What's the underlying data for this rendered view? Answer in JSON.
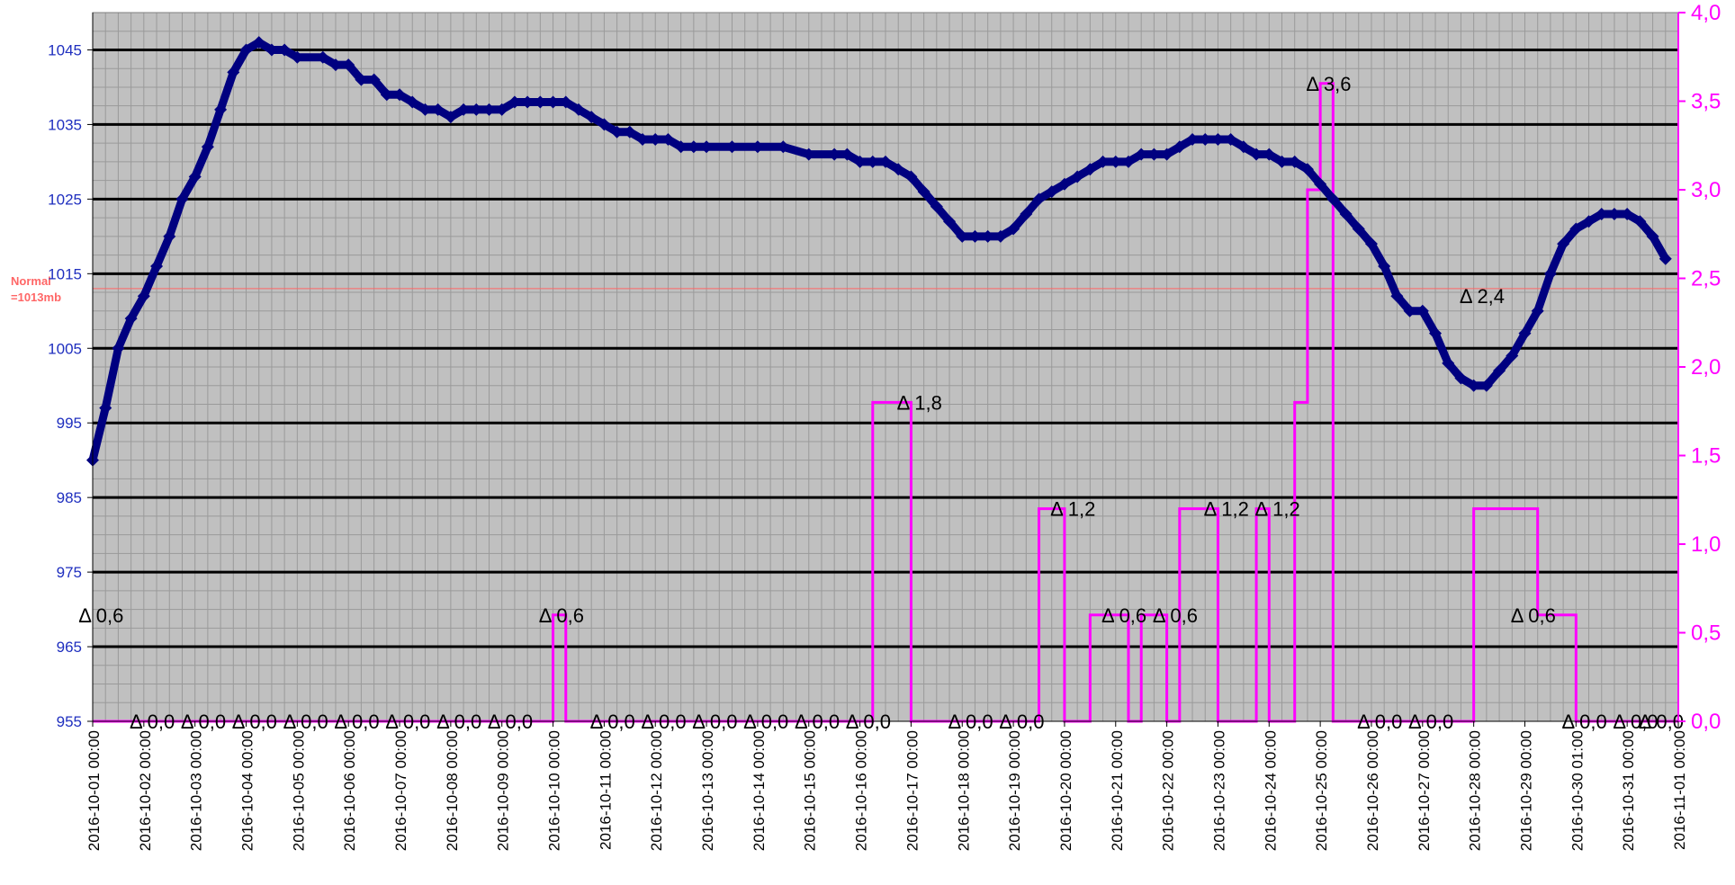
{
  "chart_data": {
    "type": "line",
    "x_axis": {
      "type": "date",
      "min": "2016-10-01 00:00",
      "max": "2016-11-01 00:00",
      "tick_labels": [
        "2016-10-01 00:00",
        "2016-10-02 00:00",
        "2016-10-03 00:00",
        "2016-10-04 00:00",
        "2016-10-05 00:00",
        "2016-10-06 00:00",
        "2016-10-07 00:00",
        "2016-10-08 00:00",
        "2016-10-09 00:00",
        "2016-10-10 00:00",
        "2016-10-11 00:00",
        "2016-10-12 00:00",
        "2016-10-13 00:00",
        "2016-10-14 00:00",
        "2016-10-15 00:00",
        "2016-10-16 00:00",
        "2016-10-17 00:00",
        "2016-10-18 00:00",
        "2016-10-19 00:00",
        "2016-10-20 00:00",
        "2016-10-21 00:00",
        "2016-10-22 00:00",
        "2016-10-23 00:00",
        "2016-10-24 00:00",
        "2016-10-25 00:00",
        "2016-10-26 00:00",
        "2016-10-27 00:00",
        "2016-10-28 00:00",
        "2016-10-29 00:00",
        "2016-10-30 01:00",
        "2016-10-31 00:00",
        "2016-11-01 00:00"
      ],
      "label_rotation": "vertical"
    },
    "y_axis_left": {
      "min": 955,
      "max": 1050,
      "tick_labels": [
        "955",
        "965",
        "975",
        "985",
        "995",
        "1005",
        "1015",
        "1025",
        "1035",
        "1045"
      ],
      "color": "#1f2fbf"
    },
    "y_axis_right": {
      "min": 0,
      "max": 4,
      "tick_labels": [
        "0,0",
        "0,5",
        "1,0",
        "1,5",
        "2,0",
        "2,5",
        "3,0",
        "3,5",
        "4,0"
      ],
      "color": "#ff00ff"
    },
    "reference_line": {
      "value": 1013,
      "label_line1": "Normal",
      "label_line2": "=1013mb",
      "color": "#ff6666"
    },
    "grid": true,
    "plot_background": "#c0c0c0",
    "series": [
      {
        "axis": "left",
        "color": "#000080",
        "marker": "diamond",
        "points": [
          [
            "2016-10-01 00:00",
            990
          ],
          [
            "2016-10-01 06:00",
            997
          ],
          [
            "2016-10-01 12:00",
            1005
          ],
          [
            "2016-10-01 18:00",
            1009
          ],
          [
            "2016-10-02 00:00",
            1012
          ],
          [
            "2016-10-02 06:00",
            1016
          ],
          [
            "2016-10-02 12:00",
            1020
          ],
          [
            "2016-10-02 18:00",
            1025
          ],
          [
            "2016-10-03 00:00",
            1028
          ],
          [
            "2016-10-03 06:00",
            1032
          ],
          [
            "2016-10-03 12:00",
            1037
          ],
          [
            "2016-10-03 18:00",
            1042
          ],
          [
            "2016-10-04 00:00",
            1045
          ],
          [
            "2016-10-04 06:00",
            1046
          ],
          [
            "2016-10-04 12:00",
            1045
          ],
          [
            "2016-10-04 18:00",
            1045
          ],
          [
            "2016-10-05 00:00",
            1044
          ],
          [
            "2016-10-05 12:00",
            1044
          ],
          [
            "2016-10-05 18:00",
            1043
          ],
          [
            "2016-10-06 00:00",
            1043
          ],
          [
            "2016-10-06 06:00",
            1041
          ],
          [
            "2016-10-06 12:00",
            1041
          ],
          [
            "2016-10-06 18:00",
            1039
          ],
          [
            "2016-10-07 00:00",
            1039
          ],
          [
            "2016-10-07 06:00",
            1038
          ],
          [
            "2016-10-07 12:00",
            1037
          ],
          [
            "2016-10-07 18:00",
            1037
          ],
          [
            "2016-10-08 00:00",
            1036
          ],
          [
            "2016-10-08 06:00",
            1037
          ],
          [
            "2016-10-08 12:00",
            1037
          ],
          [
            "2016-10-08 18:00",
            1037
          ],
          [
            "2016-10-09 00:00",
            1037
          ],
          [
            "2016-10-09 06:00",
            1038
          ],
          [
            "2016-10-09 12:00",
            1038
          ],
          [
            "2016-10-09 18:00",
            1038
          ],
          [
            "2016-10-10 00:00",
            1038
          ],
          [
            "2016-10-10 06:00",
            1038
          ],
          [
            "2016-10-10 12:00",
            1037
          ],
          [
            "2016-10-10 18:00",
            1036
          ],
          [
            "2016-10-11 00:00",
            1035
          ],
          [
            "2016-10-11 06:00",
            1034
          ],
          [
            "2016-10-11 12:00",
            1034
          ],
          [
            "2016-10-11 18:00",
            1033
          ],
          [
            "2016-10-12 00:00",
            1033
          ],
          [
            "2016-10-12 06:00",
            1033
          ],
          [
            "2016-10-12 12:00",
            1032
          ],
          [
            "2016-10-12 18:00",
            1032
          ],
          [
            "2016-10-13 00:00",
            1032
          ],
          [
            "2016-10-13 12:00",
            1032
          ],
          [
            "2016-10-14 00:00",
            1032
          ],
          [
            "2016-10-14 12:00",
            1032
          ],
          [
            "2016-10-15 00:00",
            1031
          ],
          [
            "2016-10-15 12:00",
            1031
          ],
          [
            "2016-10-15 18:00",
            1031
          ],
          [
            "2016-10-16 00:00",
            1030
          ],
          [
            "2016-10-16 06:00",
            1030
          ],
          [
            "2016-10-16 12:00",
            1030
          ],
          [
            "2016-10-16 18:00",
            1029
          ],
          [
            "2016-10-17 00:00",
            1028
          ],
          [
            "2016-10-17 06:00",
            1026
          ],
          [
            "2016-10-17 12:00",
            1024
          ],
          [
            "2016-10-17 18:00",
            1022
          ],
          [
            "2016-10-18 00:00",
            1020
          ],
          [
            "2016-10-18 06:00",
            1020
          ],
          [
            "2016-10-18 12:00",
            1020
          ],
          [
            "2016-10-18 18:00",
            1020
          ],
          [
            "2016-10-19 00:00",
            1021
          ],
          [
            "2016-10-19 06:00",
            1023
          ],
          [
            "2016-10-19 12:00",
            1025
          ],
          [
            "2016-10-19 18:00",
            1026
          ],
          [
            "2016-10-20 00:00",
            1027
          ],
          [
            "2016-10-20 06:00",
            1028
          ],
          [
            "2016-10-20 12:00",
            1029
          ],
          [
            "2016-10-20 18:00",
            1030
          ],
          [
            "2016-10-21 00:00",
            1030
          ],
          [
            "2016-10-21 06:00",
            1030
          ],
          [
            "2016-10-21 12:00",
            1031
          ],
          [
            "2016-10-21 18:00",
            1031
          ],
          [
            "2016-10-22 00:00",
            1031
          ],
          [
            "2016-10-22 06:00",
            1032
          ],
          [
            "2016-10-22 12:00",
            1033
          ],
          [
            "2016-10-22 18:00",
            1033
          ],
          [
            "2016-10-23 00:00",
            1033
          ],
          [
            "2016-10-23 06:00",
            1033
          ],
          [
            "2016-10-23 12:00",
            1032
          ],
          [
            "2016-10-23 18:00",
            1031
          ],
          [
            "2016-10-24 00:00",
            1031
          ],
          [
            "2016-10-24 06:00",
            1030
          ],
          [
            "2016-10-24 12:00",
            1030
          ],
          [
            "2016-10-24 18:00",
            1029
          ],
          [
            "2016-10-25 00:00",
            1027
          ],
          [
            "2016-10-25 06:00",
            1025
          ],
          [
            "2016-10-25 12:00",
            1023
          ],
          [
            "2016-10-25 18:00",
            1021
          ],
          [
            "2016-10-26 00:00",
            1019
          ],
          [
            "2016-10-26 06:00",
            1016
          ],
          [
            "2016-10-26 12:00",
            1012
          ],
          [
            "2016-10-26 18:00",
            1010
          ],
          [
            "2016-10-27 00:00",
            1010
          ],
          [
            "2016-10-27 06:00",
            1007
          ],
          [
            "2016-10-27 12:00",
            1003
          ],
          [
            "2016-10-27 18:00",
            1001
          ],
          [
            "2016-10-28 00:00",
            1000
          ],
          [
            "2016-10-28 06:00",
            1000
          ],
          [
            "2016-10-28 12:00",
            1002
          ],
          [
            "2016-10-28 18:00",
            1004
          ],
          [
            "2016-10-29 00:00",
            1007
          ],
          [
            "2016-10-29 06:00",
            1010
          ],
          [
            "2016-10-29 12:00",
            1015
          ],
          [
            "2016-10-29 18:00",
            1019
          ],
          [
            "2016-10-30 00:00",
            1021
          ],
          [
            "2016-10-30 06:00",
            1022
          ],
          [
            "2016-10-30 12:00",
            1023
          ],
          [
            "2016-10-30 18:00",
            1023
          ],
          [
            "2016-10-31 00:00",
            1023
          ],
          [
            "2016-10-31 06:00",
            1022
          ],
          [
            "2016-10-31 12:00",
            1020
          ],
          [
            "2016-10-31 18:00",
            1017
          ]
        ]
      },
      {
        "axis": "right",
        "color": "#ff00ff",
        "style": "step",
        "points": [
          [
            "2016-10-01 00:00",
            0
          ],
          [
            "2016-10-10 00:00",
            0.6
          ],
          [
            "2016-10-10 06:00",
            0
          ],
          [
            "2016-10-16 06:00",
            1.8
          ],
          [
            "2016-10-17 00:00",
            0
          ],
          [
            "2016-10-19 12:00",
            1.2
          ],
          [
            "2016-10-20 00:00",
            0
          ],
          [
            "2016-10-20 12:00",
            0.6
          ],
          [
            "2016-10-21 06:00",
            0
          ],
          [
            "2016-10-21 12:00",
            0.6
          ],
          [
            "2016-10-22 00:00",
            0
          ],
          [
            "2016-10-22 06:00",
            1.2
          ],
          [
            "2016-10-23 00:00",
            0
          ],
          [
            "2016-10-23 18:00",
            1.2
          ],
          [
            "2016-10-24 00:00",
            0
          ],
          [
            "2016-10-24 12:00",
            1.8
          ],
          [
            "2016-10-24 18:00",
            3.0
          ],
          [
            "2016-10-25 00:00",
            3.6
          ],
          [
            "2016-10-25 06:00",
            0
          ],
          [
            "2016-10-28 00:00",
            1.2
          ],
          [
            "2016-10-28 06:00",
            1.2
          ],
          [
            "2016-10-29 06:00",
            0.6
          ],
          [
            "2016-10-30 00:00",
            0
          ],
          [
            "2016-11-01 00:00",
            0
          ]
        ]
      }
    ],
    "annotations": [
      {
        "x": "2016-10-01 06:00",
        "y": 0.6,
        "text": "Δ 0,6"
      },
      {
        "x": "2016-10-02 06:00",
        "y": 0,
        "text": "Δ 0,0"
      },
      {
        "x": "2016-10-03 06:00",
        "y": 0,
        "text": "Δ 0,0"
      },
      {
        "x": "2016-10-04 06:00",
        "y": 0,
        "text": "Δ 0,0"
      },
      {
        "x": "2016-10-05 06:00",
        "y": 0,
        "text": "Δ 0,0"
      },
      {
        "x": "2016-10-06 06:00",
        "y": 0,
        "text": "Δ 0,0"
      },
      {
        "x": "2016-10-07 06:00",
        "y": 0,
        "text": "Δ 0,0"
      },
      {
        "x": "2016-10-08 06:00",
        "y": 0,
        "text": "Δ 0,0"
      },
      {
        "x": "2016-10-09 06:00",
        "y": 0,
        "text": "Δ 0,0"
      },
      {
        "x": "2016-10-10 06:00",
        "y": 0.6,
        "text": "Δ 0,6"
      },
      {
        "x": "2016-10-11 06:00",
        "y": 0,
        "text": "Δ 0,0"
      },
      {
        "x": "2016-10-12 06:00",
        "y": 0,
        "text": "Δ 0,0"
      },
      {
        "x": "2016-10-13 06:00",
        "y": 0,
        "text": "Δ 0,0"
      },
      {
        "x": "2016-10-14 06:00",
        "y": 0,
        "text": "Δ 0,0"
      },
      {
        "x": "2016-10-15 06:00",
        "y": 0,
        "text": "Δ 0,0"
      },
      {
        "x": "2016-10-16 06:00",
        "y": 0,
        "text": "Δ 0,0"
      },
      {
        "x": "2016-10-17 06:00",
        "y": 1.8,
        "text": "Δ 1,8"
      },
      {
        "x": "2016-10-18 06:00",
        "y": 0,
        "text": "Δ 0,0"
      },
      {
        "x": "2016-10-19 06:00",
        "y": 0,
        "text": "Δ 0,0"
      },
      {
        "x": "2016-10-20 06:00",
        "y": 1.2,
        "text": "Δ 1,2"
      },
      {
        "x": "2016-10-21 06:00",
        "y": 0.6,
        "text": "Δ 0,6"
      },
      {
        "x": "2016-10-22 06:00",
        "y": 0.6,
        "text": "Δ 0,6"
      },
      {
        "x": "2016-10-23 06:00",
        "y": 1.2,
        "text": "Δ 1,2"
      },
      {
        "x": "2016-10-24 06:00",
        "y": 1.2,
        "text": "Δ 1,2"
      },
      {
        "x": "2016-10-25 06:00",
        "y": 3.6,
        "text": "Δ 3,6"
      },
      {
        "x": "2016-10-26 06:00",
        "y": 0,
        "text": "Δ 0,0"
      },
      {
        "x": "2016-10-27 06:00",
        "y": 0,
        "text": "Δ 0,0"
      },
      {
        "x": "2016-10-28 06:00",
        "y": 2.4,
        "text": "Δ 2,4"
      },
      {
        "x": "2016-10-29 06:00",
        "y": 0.6,
        "text": "Δ 0,6"
      },
      {
        "x": "2016-10-30 06:00",
        "y": 0,
        "text": "Δ 0,0"
      },
      {
        "x": "2016-10-31 06:00",
        "y": 0,
        "text": "Δ 0,0"
      },
      {
        "x": "2016-10-31 18:00",
        "y": 0,
        "text": "Δ 0,0"
      }
    ]
  }
}
